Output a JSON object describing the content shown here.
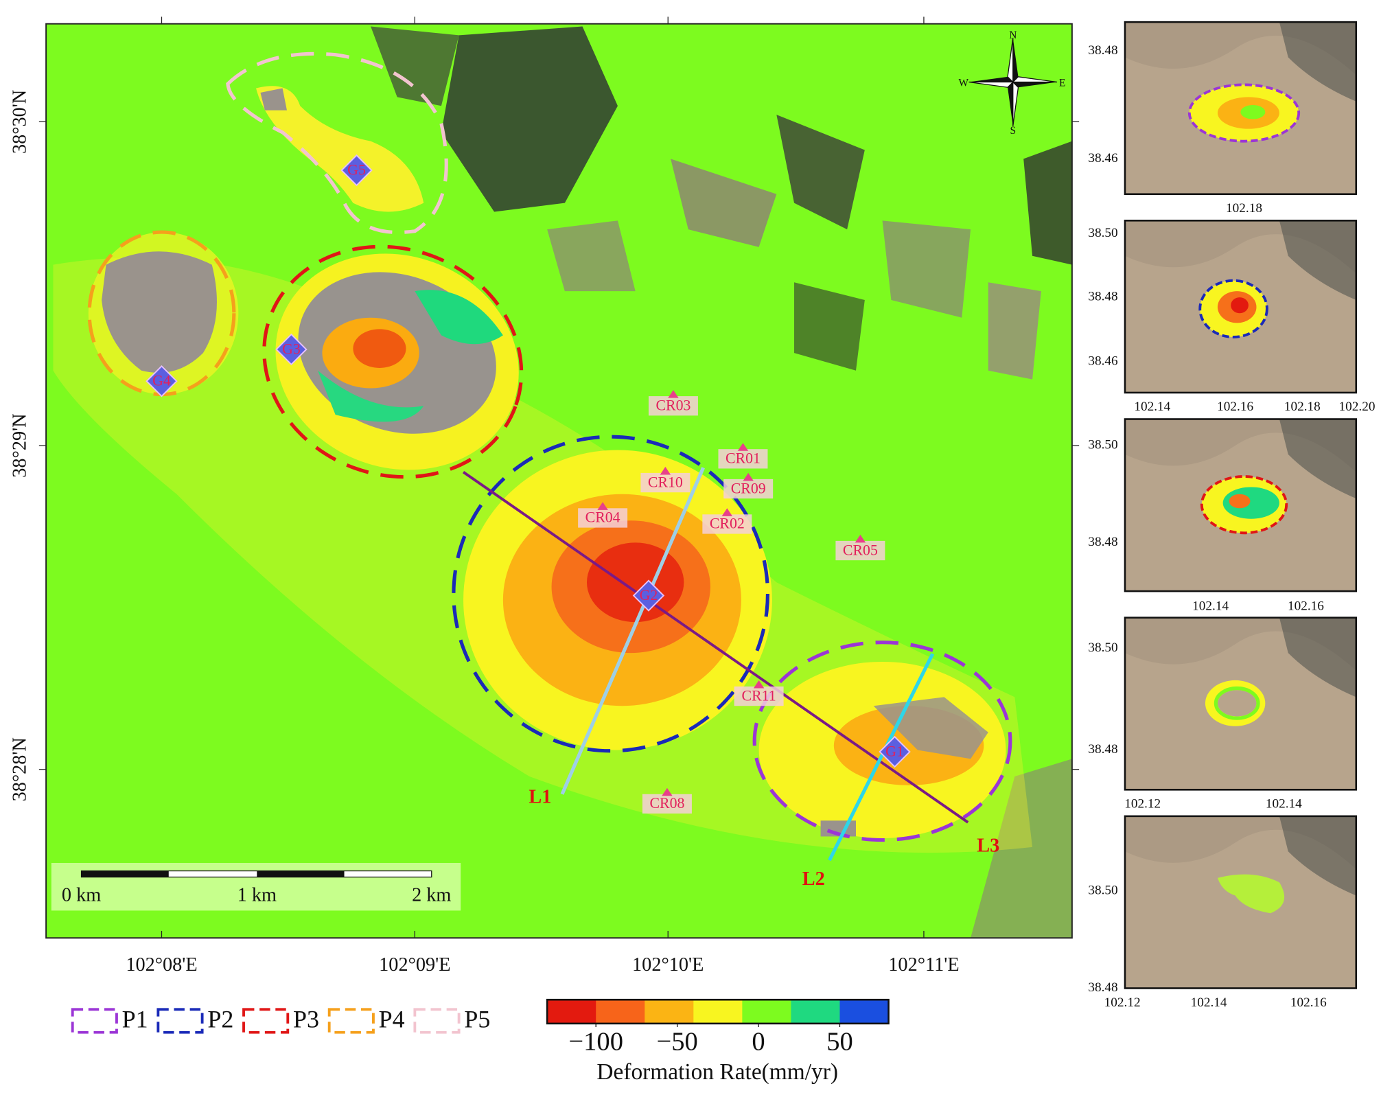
{
  "map": {
    "x_axis": [
      "102°08'E",
      "102°09'E",
      "102°10'E",
      "102°11'E"
    ],
    "y_axis": [
      "38°30'N",
      "38°29'N",
      "38°28'N"
    ],
    "compass": {
      "n": "N",
      "s": "S",
      "w": "W",
      "e": "E"
    },
    "sites": [
      "G1",
      "G2",
      "G3",
      "G4",
      "G5",
      "CR01",
      "CR02",
      "CR03",
      "CR04",
      "CR05",
      "CR08",
      "CR09",
      "CR10",
      "CR11"
    ],
    "profiles": [
      "L1",
      "L2",
      "L3"
    ],
    "scale_bar": [
      "0 km",
      "1 km",
      "2 km"
    ]
  },
  "legend": [
    "P1",
    "P2",
    "P3",
    "P4",
    "P5"
  ],
  "colorbar": {
    "range": [
      -130,
      80
    ],
    "ticks": [
      {
        "value": -100,
        "label": "−100"
      },
      {
        "value": -50,
        "label": "−50"
      },
      0,
      50
    ],
    "colors": [
      "#e31a0f",
      "#f7641a",
      "#fbb414",
      "#f8f520",
      "#7dfb1f",
      "#1fd980",
      "#1a4fe0"
    ],
    "title": "Deformation Rate(mm/yr)"
  },
  "insets": [
    {
      "y_ticks": [
        "38.48",
        "38.46"
      ],
      "x_ticks": [
        "102.18"
      ]
    },
    {
      "y_ticks": [
        "38.50",
        "38.48",
        "38.46"
      ],
      "x_ticks": [
        "102.14",
        "102.16",
        "102.18",
        "102.20"
      ]
    },
    {
      "y_ticks": [
        "38.50",
        "38.48"
      ],
      "x_ticks": [
        "102.14",
        "102.16"
      ]
    },
    {
      "y_ticks": [
        "38.50",
        "38.48"
      ],
      "x_ticks": [
        "102.12",
        "102.14"
      ]
    },
    {
      "y_ticks": [
        "38.50",
        "38.48"
      ],
      "x_ticks": [
        "102.12",
        "102.14",
        "102.16"
      ]
    }
  ]
}
